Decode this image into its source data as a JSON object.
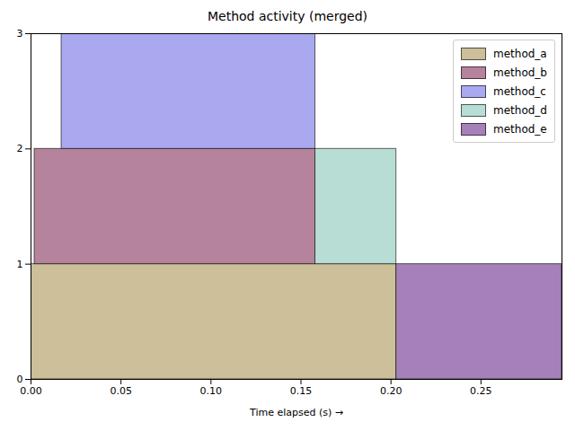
{
  "chart_data": {
    "type": "timeline",
    "title": "Method activity (merged)",
    "x_label": "Time elapsed (s)",
    "series": [
      {
        "name": "method_a",
        "color": "#ccbf99",
        "start": 0.0,
        "end": 0.203,
        "low": 0,
        "high": 1
      },
      {
        "name": "method_b",
        "color": "#b5839b",
        "start": 0.002,
        "end": 0.158,
        "low": 1,
        "high": 2
      },
      {
        "name": "method_c",
        "color": "#aaa8ee",
        "start": 0.017,
        "end": 0.158,
        "low": 2,
        "high": 3
      },
      {
        "name": "method_d",
        "color": "#b8ddd5",
        "start": 0.158,
        "end": 0.203,
        "low": 1,
        "high": 2
      },
      {
        "name": "method_e",
        "color": "#a680b8",
        "start": 0.203,
        "end": 0.295,
        "low": 0,
        "high": 1
      }
    ],
    "xlim": [
      0,
      0.295
    ],
    "xticks": [
      {
        "value": 0,
        "label": "0.00"
      },
      {
        "value": 0.05,
        "label": "0.05"
      },
      {
        "value": 0.1,
        "label": "0.10"
      },
      {
        "value": 0.15,
        "label": "0.15"
      },
      {
        "value": 0.2,
        "label": "0.20"
      },
      {
        "value": 0.25,
        "label": "0.25"
      }
    ],
    "ylim": [
      0,
      3
    ],
    "yticks": [
      0,
      1,
      2,
      3
    ],
    "legend": "upper right"
  }
}
